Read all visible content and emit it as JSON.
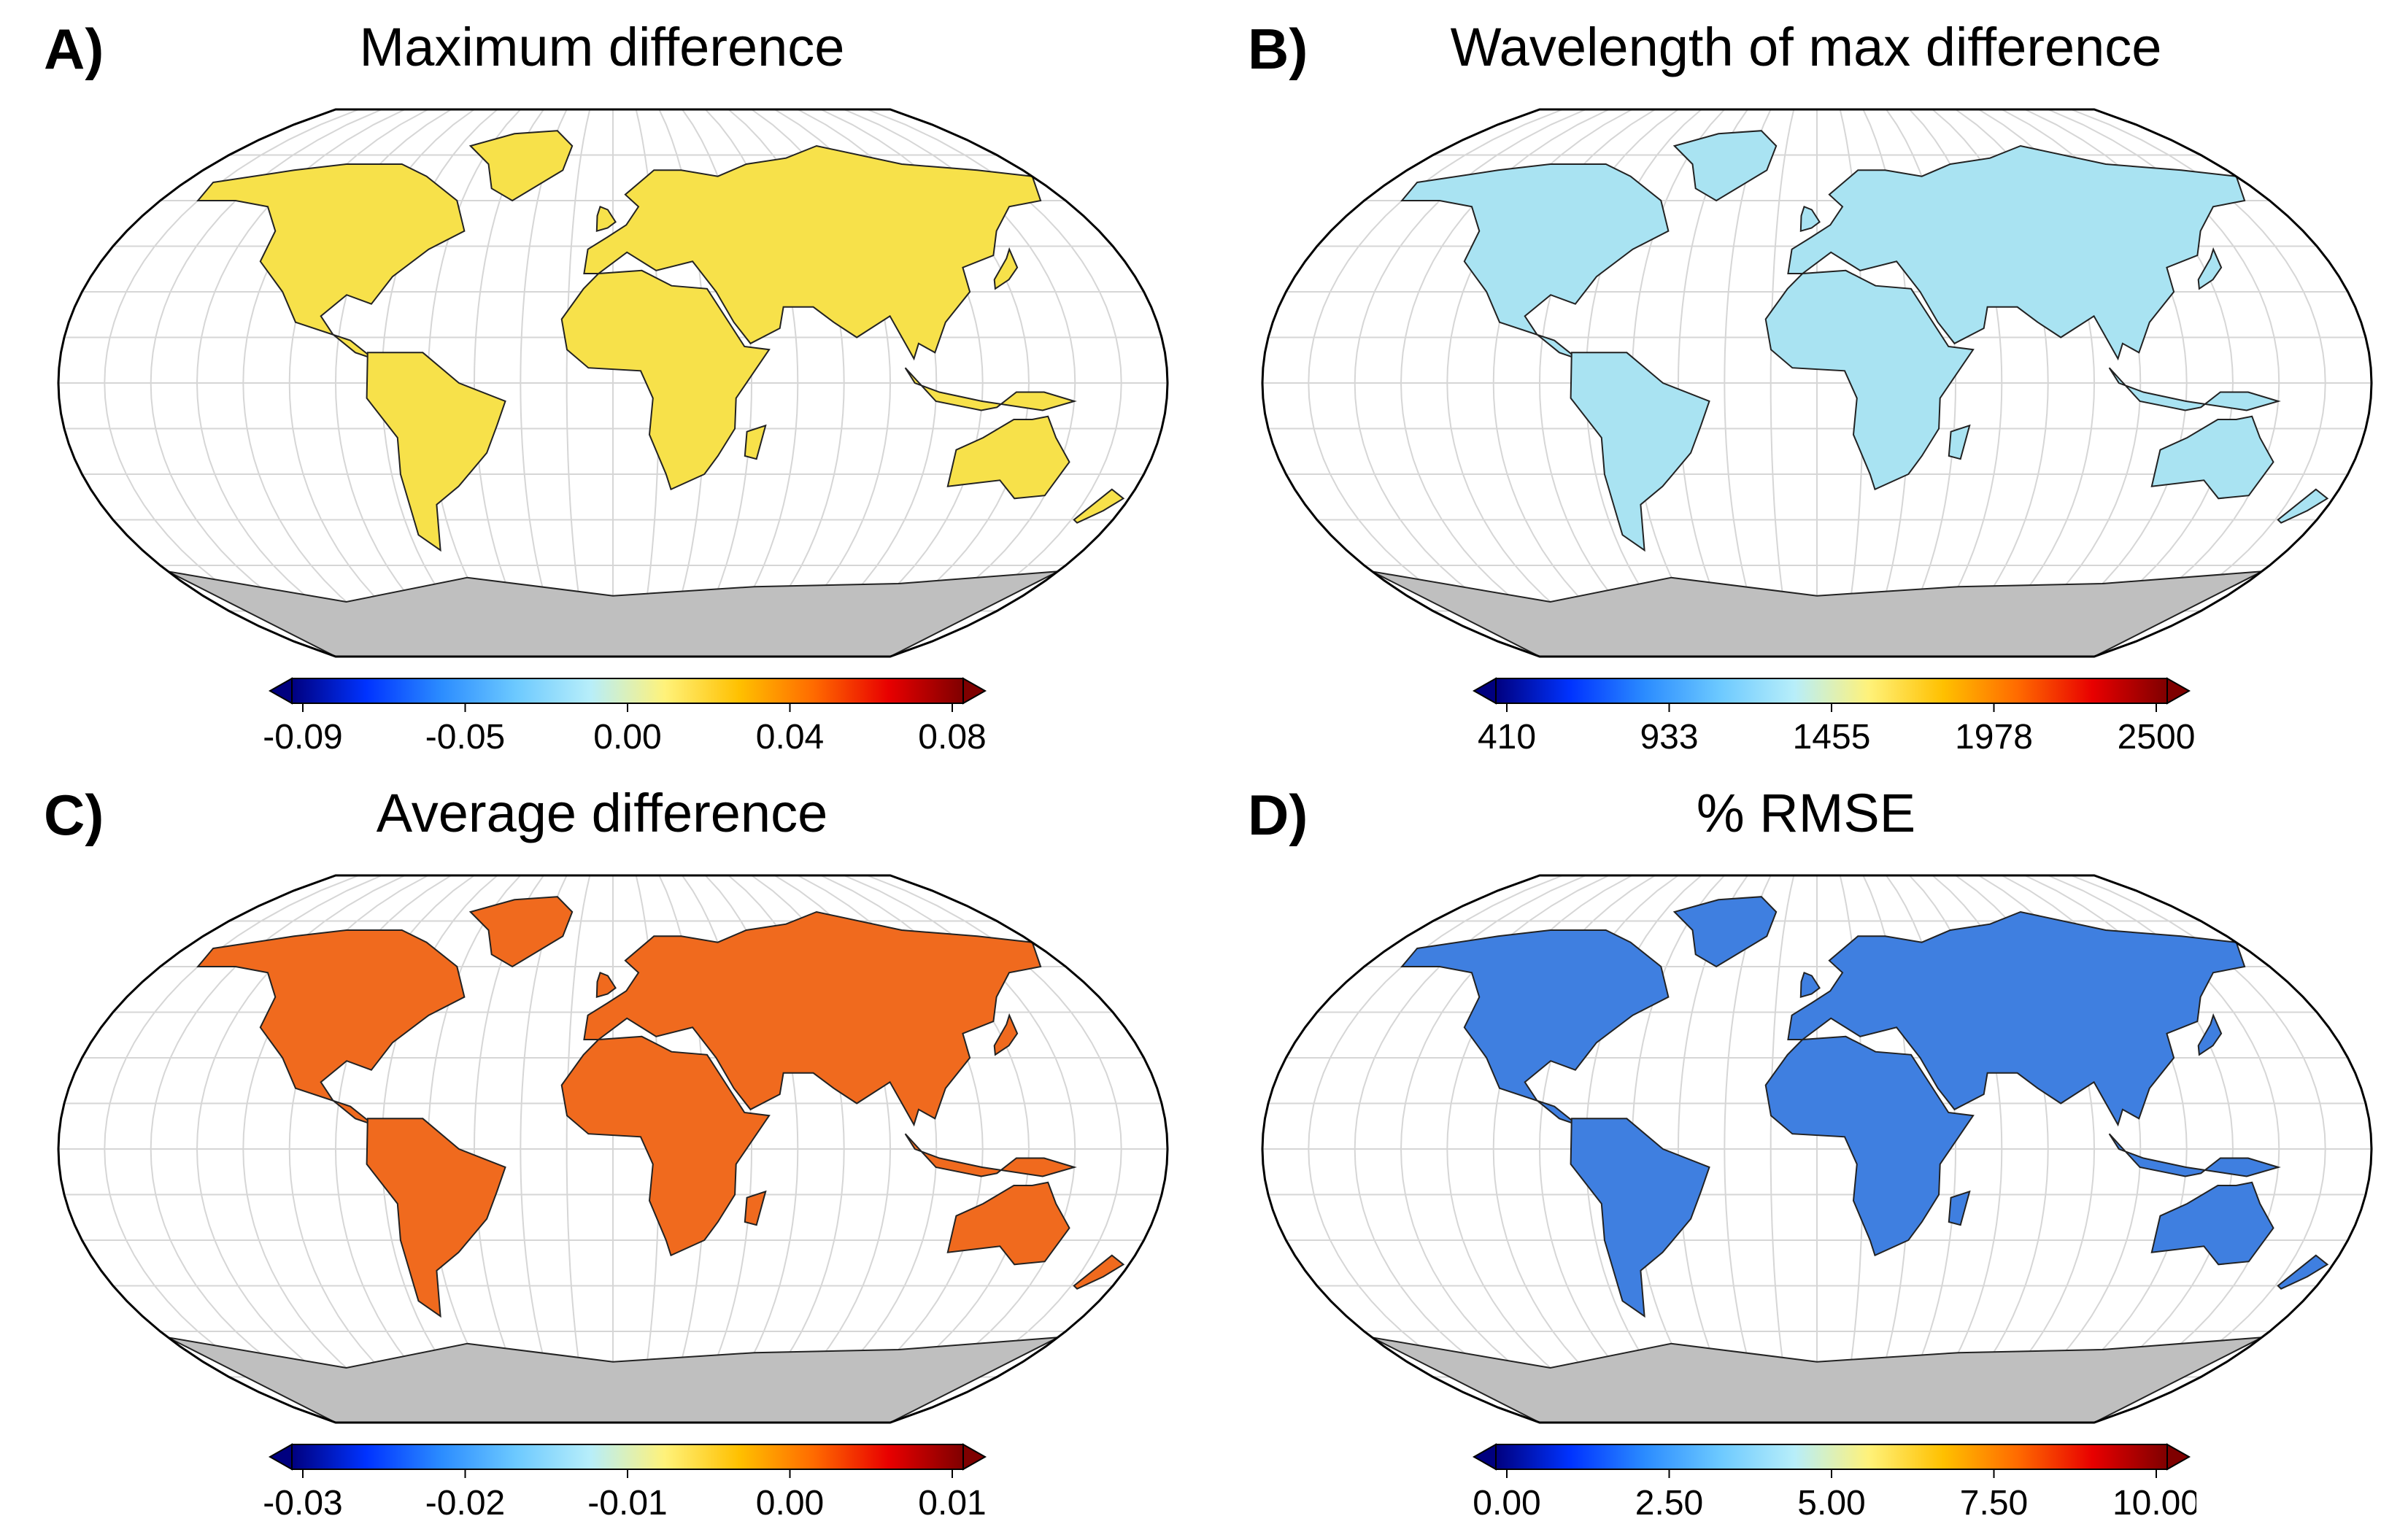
{
  "panels": [
    {
      "letter": "A)",
      "title": "Maximum difference",
      "colormap": "blue-cyan-yellow-red",
      "colorbar_ticks": [
        "-0.09",
        "-0.05",
        "0.00",
        "0.04",
        "0.08"
      ],
      "land_tint": "#f7e14a"
    },
    {
      "letter": "B)",
      "title": "Wavelength of max difference",
      "colormap": "blue-cyan-yellow-red",
      "colorbar_ticks": [
        "410",
        "933",
        "1455",
        "1978",
        "2500"
      ],
      "land_tint": "#a9e3f2"
    },
    {
      "letter": "C)",
      "title": "Average difference",
      "colormap": "blue-cyan-yellow-red",
      "colorbar_ticks": [
        "-0.03",
        "-0.02",
        "-0.01",
        "0.00",
        "0.01"
      ],
      "land_tint": "#f06a1e"
    },
    {
      "letter": "D)",
      "title": "% RMSE",
      "colormap": "blue-cyan-yellow-red",
      "colorbar_ticks": [
        "0.00",
        "2.50",
        "5.00",
        "7.50",
        "10.00"
      ],
      "land_tint": "#3f7fe0"
    }
  ],
  "colors": {
    "antarctica": "#bfbfbf",
    "graticule": "#d6d6d6",
    "outline": "#000000"
  }
}
